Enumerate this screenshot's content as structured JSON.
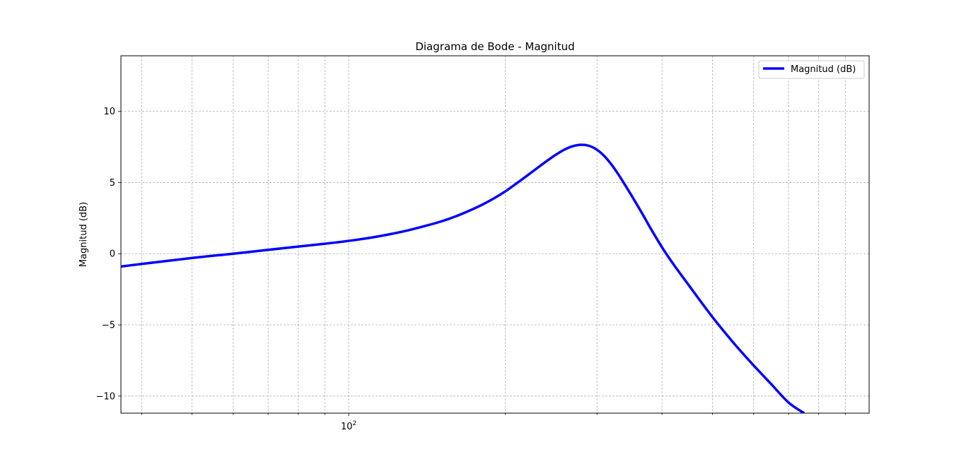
{
  "chart_data": {
    "type": "line",
    "title": "Diagrama de Bode - Magnitud",
    "xlabel": "",
    "ylabel": "Magnitud (dB)",
    "xscale": "log",
    "xlim": [
      36.5,
      1000
    ],
    "ylim": [
      -11.2,
      13.9
    ],
    "grid": true,
    "legend_position": "top-right",
    "x_major_ticks": [
      {
        "value": 100,
        "base": "10",
        "exp": "2"
      }
    ],
    "x_minor_ticks": [
      40,
      50,
      60,
      70,
      80,
      90,
      200,
      300,
      400,
      500,
      600,
      700,
      800,
      900
    ],
    "y_ticks": [
      {
        "value": -10,
        "label": "−10"
      },
      {
        "value": -5,
        "label": "−5"
      },
      {
        "value": 0,
        "label": "0"
      },
      {
        "value": 5,
        "label": "5"
      },
      {
        "value": 10,
        "label": "10"
      }
    ],
    "series": [
      {
        "name": "Magnitud (dB)",
        "color": "#0000ff",
        "x": [
          36.5,
          40,
          45,
          50,
          55,
          60,
          70,
          80,
          90,
          100,
          110,
          120,
          130,
          140,
          150,
          160,
          170,
          180,
          190,
          200,
          210,
          220,
          230,
          240,
          250,
          260,
          270,
          280,
          290,
          300,
          310,
          320,
          330,
          340,
          350,
          360,
          370,
          380,
          400,
          420,
          450,
          500,
          550,
          600,
          650,
          700,
          750
        ],
        "y": [
          -0.9,
          -0.72,
          -0.5,
          -0.3,
          -0.14,
          0.0,
          0.27,
          0.5,
          0.7,
          0.9,
          1.12,
          1.37,
          1.64,
          1.94,
          2.25,
          2.6,
          3.0,
          3.42,
          3.88,
          4.38,
          4.93,
          5.47,
          6.0,
          6.5,
          6.95,
          7.32,
          7.56,
          7.65,
          7.57,
          7.3,
          6.85,
          6.25,
          5.55,
          4.8,
          4.05,
          3.3,
          2.55,
          1.8,
          0.45,
          -0.7,
          -2.2,
          -4.45,
          -6.3,
          -7.85,
          -9.2,
          -10.45,
          -11.2
        ]
      }
    ]
  }
}
